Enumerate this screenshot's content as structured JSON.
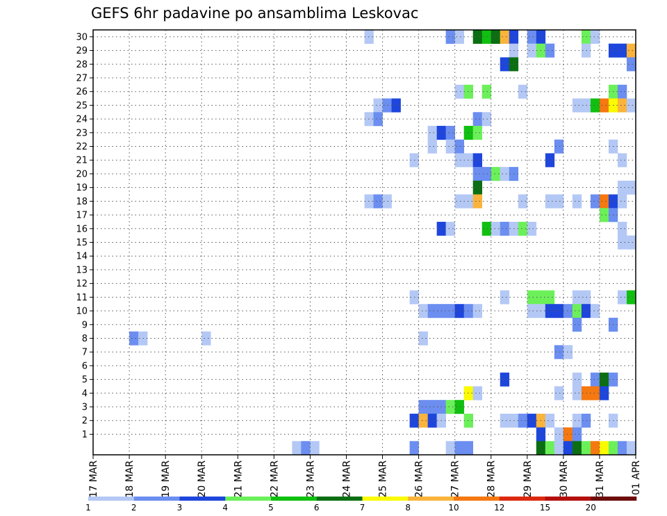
{
  "chart_data": {
    "type": "heatmap",
    "title": "GEFS 6hr padavine po ansamblima Leskovac",
    "ylabel": "",
    "xlabel": "",
    "y_categories": [
      "1",
      "2",
      "3",
      "4",
      "5",
      "6",
      "7",
      "8",
      "9",
      "10",
      "11",
      "12",
      "13",
      "14",
      "15",
      "16",
      "17",
      "18",
      "19",
      "20",
      "21",
      "22",
      "23",
      "24",
      "25",
      "26",
      "27",
      "28",
      "29",
      "30"
    ],
    "x_ticks": [
      "17 MAR",
      "18 MAR",
      "19 MAR",
      "20 MAR",
      "21 MAR",
      "22 MAR",
      "23 MAR",
      "24 MAR",
      "25 MAR",
      "26 MAR",
      "27 MAR",
      "28 MAR",
      "29 MAR",
      "30 MAR",
      "31 MAR",
      "01 APR"
    ],
    "x_step": "6hr",
    "grid": true,
    "legend": {
      "placement": "bottom",
      "thresholds": [
        "1",
        "2",
        "3",
        "4",
        "5",
        "6",
        "7",
        "8",
        "10",
        "12",
        "15",
        "20"
      ],
      "colors": [
        "#b4c8f5",
        "#6b8ef0",
        "#1e46dc",
        "#6cf05a",
        "#10c010",
        "#0c6e12",
        "#fafa00",
        "#fab43c",
        "#f57810",
        "#dc2a10",
        "#b4100e",
        "#6e0c0c"
      ]
    },
    "cells": [
      {
        "member": 30,
        "step": 30,
        "level": 1
      },
      {
        "member": 30,
        "step": 39,
        "level": 2
      },
      {
        "member": 30,
        "step": 40,
        "level": 1
      },
      {
        "member": 30,
        "step": 42,
        "level": 6
      },
      {
        "member": 30,
        "step": 43,
        "level": 5
      },
      {
        "member": 30,
        "step": 44,
        "level": 6
      },
      {
        "member": 30,
        "step": 45,
        "level": 8
      },
      {
        "member": 30,
        "step": 46,
        "level": 3
      },
      {
        "member": 30,
        "step": 48,
        "level": 2
      },
      {
        "member": 30,
        "step": 49,
        "level": 3
      },
      {
        "member": 30,
        "step": 54,
        "level": 4
      },
      {
        "member": 30,
        "step": 55,
        "level": 1
      },
      {
        "member": 29,
        "step": 46,
        "level": 1
      },
      {
        "member": 29,
        "step": 48,
        "level": 1
      },
      {
        "member": 29,
        "step": 49,
        "level": 4
      },
      {
        "member": 29,
        "step": 50,
        "level": 2
      },
      {
        "member": 29,
        "step": 54,
        "level": 1
      },
      {
        "member": 29,
        "step": 57,
        "level": 3
      },
      {
        "member": 29,
        "step": 58,
        "level": 3
      },
      {
        "member": 29,
        "step": 59,
        "level": 8
      },
      {
        "member": 28,
        "step": 45,
        "level": 3
      },
      {
        "member": 28,
        "step": 46,
        "level": 6
      },
      {
        "member": 28,
        "step": 59,
        "level": 2
      },
      {
        "member": 26,
        "step": 40,
        "level": 1
      },
      {
        "member": 26,
        "step": 41,
        "level": 4
      },
      {
        "member": 26,
        "step": 43,
        "level": 4
      },
      {
        "member": 26,
        "step": 47,
        "level": 1
      },
      {
        "member": 26,
        "step": 57,
        "level": 4
      },
      {
        "member": 26,
        "step": 58,
        "level": 2
      },
      {
        "member": 25,
        "step": 31,
        "level": 1
      },
      {
        "member": 25,
        "step": 32,
        "level": 2
      },
      {
        "member": 25,
        "step": 33,
        "level": 3
      },
      {
        "member": 25,
        "step": 53,
        "level": 1
      },
      {
        "member": 25,
        "step": 54,
        "level": 1
      },
      {
        "member": 25,
        "step": 55,
        "level": 5
      },
      {
        "member": 25,
        "step": 56,
        "level": 9
      },
      {
        "member": 25,
        "step": 57,
        "level": 7
      },
      {
        "member": 25,
        "step": 58,
        "level": 8
      },
      {
        "member": 25,
        "step": 59,
        "level": 1
      },
      {
        "member": 24,
        "step": 30,
        "level": 1
      },
      {
        "member": 24,
        "step": 31,
        "level": 2
      },
      {
        "member": 24,
        "step": 42,
        "level": 2
      },
      {
        "member": 24,
        "step": 43,
        "level": 1
      },
      {
        "member": 23,
        "step": 37,
        "level": 1
      },
      {
        "member": 23,
        "step": 38,
        "level": 3
      },
      {
        "member": 23,
        "step": 39,
        "level": 2
      },
      {
        "member": 23,
        "step": 41,
        "level": 5
      },
      {
        "member": 23,
        "step": 42,
        "level": 4
      },
      {
        "member": 22,
        "step": 37,
        "level": 1
      },
      {
        "member": 22,
        "step": 39,
        "level": 1
      },
      {
        "member": 22,
        "step": 40,
        "level": 2
      },
      {
        "member": 22,
        "step": 51,
        "level": 2
      },
      {
        "member": 22,
        "step": 57,
        "level": 1
      },
      {
        "member": 21,
        "step": 35,
        "level": 1
      },
      {
        "member": 21,
        "step": 40,
        "level": 1
      },
      {
        "member": 21,
        "step": 41,
        "level": 1
      },
      {
        "member": 21,
        "step": 42,
        "level": 3
      },
      {
        "member": 21,
        "step": 50,
        "level": 3
      },
      {
        "member": 21,
        "step": 58,
        "level": 1
      },
      {
        "member": 20,
        "step": 42,
        "level": 2
      },
      {
        "member": 20,
        "step": 43,
        "level": 2
      },
      {
        "member": 20,
        "step": 44,
        "level": 4
      },
      {
        "member": 20,
        "step": 45,
        "level": 1
      },
      {
        "member": 20,
        "step": 46,
        "level": 2
      },
      {
        "member": 19,
        "step": 42,
        "level": 6
      },
      {
        "member": 19,
        "step": 58,
        "level": 1
      },
      {
        "member": 19,
        "step": 59,
        "level": 1
      },
      {
        "member": 18,
        "step": 30,
        "level": 1
      },
      {
        "member": 18,
        "step": 31,
        "level": 2
      },
      {
        "member": 18,
        "step": 32,
        "level": 1
      },
      {
        "member": 18,
        "step": 40,
        "level": 1
      },
      {
        "member": 18,
        "step": 41,
        "level": 1
      },
      {
        "member": 18,
        "step": 42,
        "level": 8
      },
      {
        "member": 18,
        "step": 47,
        "level": 1
      },
      {
        "member": 18,
        "step": 50,
        "level": 1
      },
      {
        "member": 18,
        "step": 51,
        "level": 1
      },
      {
        "member": 18,
        "step": 53,
        "level": 1
      },
      {
        "member": 18,
        "step": 55,
        "level": 2
      },
      {
        "member": 18,
        "step": 56,
        "level": 9
      },
      {
        "member": 18,
        "step": 57,
        "level": 3
      },
      {
        "member": 18,
        "step": 58,
        "level": 1
      },
      {
        "member": 17,
        "step": 56,
        "level": 4
      },
      {
        "member": 17,
        "step": 57,
        "level": 2
      },
      {
        "member": 16,
        "step": 38,
        "level": 3
      },
      {
        "member": 16,
        "step": 39,
        "level": 1
      },
      {
        "member": 16,
        "step": 43,
        "level": 5
      },
      {
        "member": 16,
        "step": 44,
        "level": 1
      },
      {
        "member": 16,
        "step": 45,
        "level": 2
      },
      {
        "member": 16,
        "step": 46,
        "level": 1
      },
      {
        "member": 16,
        "step": 47,
        "level": 4
      },
      {
        "member": 16,
        "step": 48,
        "level": 1
      },
      {
        "member": 16,
        "step": 58,
        "level": 1
      },
      {
        "member": 15,
        "step": 58,
        "level": 1
      },
      {
        "member": 15,
        "step": 59,
        "level": 1
      },
      {
        "member": 11,
        "step": 35,
        "level": 1
      },
      {
        "member": 11,
        "step": 45,
        "level": 1
      },
      {
        "member": 11,
        "step": 48,
        "level": 4
      },
      {
        "member": 11,
        "step": 49,
        "level": 4
      },
      {
        "member": 11,
        "step": 50,
        "level": 4
      },
      {
        "member": 11,
        "step": 53,
        "level": 1
      },
      {
        "member": 11,
        "step": 54,
        "level": 1
      },
      {
        "member": 11,
        "step": 58,
        "level": 1
      },
      {
        "member": 11,
        "step": 59,
        "level": 5
      },
      {
        "member": 10,
        "step": 36,
        "level": 1
      },
      {
        "member": 10,
        "step": 37,
        "level": 2
      },
      {
        "member": 10,
        "step": 38,
        "level": 2
      },
      {
        "member": 10,
        "step": 39,
        "level": 2
      },
      {
        "member": 10,
        "step": 40,
        "level": 3
      },
      {
        "member": 10,
        "step": 41,
        "level": 2
      },
      {
        "member": 10,
        "step": 42,
        "level": 1
      },
      {
        "member": 10,
        "step": 48,
        "level": 1
      },
      {
        "member": 10,
        "step": 49,
        "level": 1
      },
      {
        "member": 10,
        "step": 50,
        "level": 3
      },
      {
        "member": 10,
        "step": 51,
        "level": 3
      },
      {
        "member": 10,
        "step": 52,
        "level": 2
      },
      {
        "member": 10,
        "step": 53,
        "level": 4
      },
      {
        "member": 10,
        "step": 54,
        "level": 3
      },
      {
        "member": 10,
        "step": 55,
        "level": 1
      },
      {
        "member": 9,
        "step": 53,
        "level": 2
      },
      {
        "member": 9,
        "step": 57,
        "level": 2
      },
      {
        "member": 8,
        "step": 4,
        "level": 2
      },
      {
        "member": 8,
        "step": 5,
        "level": 1
      },
      {
        "member": 8,
        "step": 12,
        "level": 1
      },
      {
        "member": 8,
        "step": 36,
        "level": 1
      },
      {
        "member": 7,
        "step": 51,
        "level": 2
      },
      {
        "member": 7,
        "step": 52,
        "level": 1
      },
      {
        "member": 5,
        "step": 45,
        "level": 3
      },
      {
        "member": 5,
        "step": 53,
        "level": 1
      },
      {
        "member": 5,
        "step": 55,
        "level": 2
      },
      {
        "member": 5,
        "step": 56,
        "level": 6
      },
      {
        "member": 5,
        "step": 57,
        "level": 2
      },
      {
        "member": 4,
        "step": 41,
        "level": 7
      },
      {
        "member": 4,
        "step": 42,
        "level": 1
      },
      {
        "member": 4,
        "step": 51,
        "level": 1
      },
      {
        "member": 4,
        "step": 53,
        "level": 1
      },
      {
        "member": 4,
        "step": 54,
        "level": 9
      },
      {
        "member": 4,
        "step": 55,
        "level": 9
      },
      {
        "member": 4,
        "step": 56,
        "level": 3
      },
      {
        "member": 3,
        "step": 36,
        "level": 2
      },
      {
        "member": 3,
        "step": 37,
        "level": 2
      },
      {
        "member": 3,
        "step": 38,
        "level": 2
      },
      {
        "member": 3,
        "step": 39,
        "level": 4
      },
      {
        "member": 3,
        "step": 40,
        "level": 5
      },
      {
        "member": 2,
        "step": 35,
        "level": 3
      },
      {
        "member": 2,
        "step": 36,
        "level": 8
      },
      {
        "member": 2,
        "step": 37,
        "level": 3
      },
      {
        "member": 2,
        "step": 38,
        "level": 1
      },
      {
        "member": 2,
        "step": 41,
        "level": 4
      },
      {
        "member": 2,
        "step": 45,
        "level": 1
      },
      {
        "member": 2,
        "step": 46,
        "level": 1
      },
      {
        "member": 2,
        "step": 47,
        "level": 2
      },
      {
        "member": 2,
        "step": 48,
        "level": 3
      },
      {
        "member": 2,
        "step": 49,
        "level": 8
      },
      {
        "member": 2,
        "step": 50,
        "level": 1
      },
      {
        "member": 2,
        "step": 53,
        "level": 1
      },
      {
        "member": 2,
        "step": 54,
        "level": 2
      },
      {
        "member": 2,
        "step": 57,
        "level": 1
      },
      {
        "member": 1,
        "step": 49,
        "level": 3
      },
      {
        "member": 1,
        "step": 51,
        "level": 1
      },
      {
        "member": 1,
        "step": 52,
        "level": 9
      },
      {
        "member": 1,
        "step": 53,
        "level": 2
      },
      {
        "member": 0,
        "step": 22,
        "level": 1
      },
      {
        "member": 0,
        "step": 23,
        "level": 2
      },
      {
        "member": 0,
        "step": 24,
        "level": 1
      },
      {
        "member": 0,
        "step": 35,
        "level": 2
      },
      {
        "member": 0,
        "step": 39,
        "level": 1
      },
      {
        "member": 0,
        "step": 40,
        "level": 2
      },
      {
        "member": 0,
        "step": 41,
        "level": 2
      },
      {
        "member": 0,
        "step": 49,
        "level": 6
      },
      {
        "member": 0,
        "step": 50,
        "level": 4
      },
      {
        "member": 0,
        "step": 51,
        "level": 1
      },
      {
        "member": 0,
        "step": 52,
        "level": 3
      },
      {
        "member": 0,
        "step": 53,
        "level": 6
      },
      {
        "member": 0,
        "step": 54,
        "level": 4
      },
      {
        "member": 0,
        "step": 55,
        "level": 9
      },
      {
        "member": 0,
        "step": 56,
        "level": 7
      },
      {
        "member": 0,
        "step": 57,
        "level": 4
      },
      {
        "member": 0,
        "step": 58,
        "level": 2
      },
      {
        "member": 0,
        "step": 59,
        "level": 1
      }
    ]
  }
}
